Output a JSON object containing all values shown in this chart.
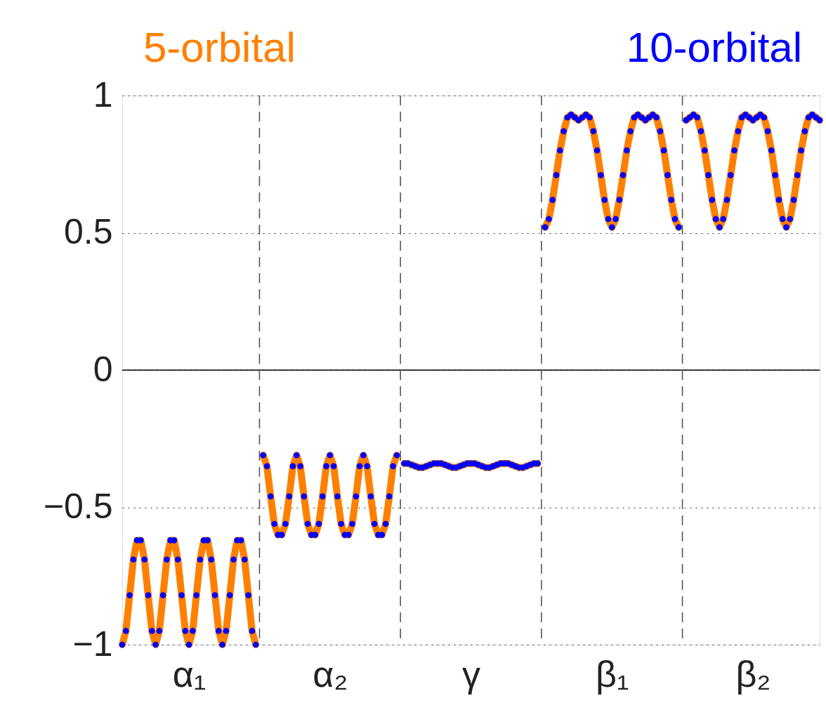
{
  "chart_data": {
    "type": "line",
    "categories": [
      null,
      null,
      null,
      null,
      null,
      null,
      null,
      null,
      null,
      null,
      null,
      null,
      null,
      null,
      null,
      null,
      null,
      null,
      "α₁",
      null,
      null,
      null,
      null,
      null,
      null,
      null,
      null,
      null,
      null,
      null,
      null,
      null,
      null,
      null,
      null,
      null,
      null,
      null,
      null,
      null,
      null,
      null,
      null,
      null,
      null,
      null,
      null,
      null,
      null,
      null,
      null,
      null,
      null,
      null,
      null,
      null,
      "α₂",
      null,
      null,
      null,
      null,
      null,
      null,
      null,
      null,
      null,
      null,
      null,
      null,
      null,
      null,
      null,
      null,
      null,
      null,
      null,
      null,
      null,
      null,
      null,
      null,
      null,
      null,
      null,
      null,
      null,
      null,
      null,
      null,
      null,
      null,
      null,
      null,
      null,
      "γ",
      null,
      null,
      null,
      null,
      null,
      null,
      null,
      null,
      null,
      null,
      null,
      null,
      null,
      null,
      null,
      null,
      null,
      null,
      null,
      null,
      null,
      null,
      null,
      null,
      null,
      null,
      null,
      null,
      null,
      null,
      null,
      null,
      null,
      null,
      null,
      null,
      null,
      "β₁",
      null,
      null,
      null,
      null,
      null,
      null,
      null,
      null,
      null,
      null,
      null,
      null,
      null,
      null,
      null,
      null,
      null,
      null,
      null,
      null,
      null,
      null,
      null,
      null,
      null,
      null,
      null,
      null,
      null,
      null,
      null,
      null,
      null,
      null,
      null,
      null,
      null,
      "β₂",
      null,
      null,
      null,
      null,
      null,
      null,
      null,
      null,
      null,
      null,
      null,
      null,
      null,
      null,
      null,
      null,
      null,
      null
    ],
    "series": [
      {
        "name": "5-orbital",
        "color": "#ff8000",
        "values": [
          -1,
          -0.95,
          -0.82,
          -0.69,
          -0.62,
          -0.62,
          -0.69,
          -0.82,
          -0.95,
          -1,
          -0.95,
          -0.82,
          -0.69,
          -0.62,
          -0.62,
          -0.69,
          -0.82,
          -0.95,
          -1,
          -0.95,
          -0.82,
          -0.69,
          -0.62,
          -0.62,
          -0.69,
          -0.82,
          -0.95,
          -1,
          -0.95,
          -0.82,
          -0.69,
          -0.62,
          -0.62,
          -0.69,
          -0.82,
          -0.95,
          -1,
          null,
          -0.31,
          -0.35,
          -0.46,
          -0.56,
          -0.6,
          -0.6,
          -0.56,
          -0.46,
          -0.35,
          -0.31,
          -0.35,
          -0.46,
          -0.56,
          -0.6,
          -0.6,
          -0.56,
          -0.46,
          -0.35,
          -0.31,
          -0.35,
          -0.46,
          -0.56,
          -0.6,
          -0.6,
          -0.56,
          -0.46,
          -0.35,
          -0.31,
          -0.35,
          -0.46,
          -0.56,
          -0.6,
          -0.6,
          -0.56,
          -0.46,
          -0.35,
          -0.31,
          null,
          -0.34,
          -0.34,
          -0.345,
          -0.35,
          -0.355,
          -0.355,
          -0.35,
          -0.345,
          -0.34,
          -0.34,
          -0.34,
          -0.345,
          -0.35,
          -0.355,
          -0.355,
          -0.35,
          -0.345,
          -0.34,
          -0.34,
          -0.34,
          -0.345,
          -0.35,
          -0.355,
          -0.355,
          -0.35,
          -0.345,
          -0.34,
          -0.34,
          -0.34,
          -0.345,
          -0.35,
          -0.355,
          -0.355,
          -0.35,
          -0.345,
          -0.34,
          -0.34,
          null,
          0.52,
          0.55,
          0.62,
          0.71,
          0.8,
          0.87,
          0.92,
          0.93,
          0.92,
          0.91,
          0.92,
          0.93,
          0.92,
          0.87,
          0.8,
          0.71,
          0.62,
          0.55,
          0.52,
          0.55,
          0.62,
          0.71,
          0.8,
          0.87,
          0.92,
          0.93,
          0.92,
          0.91,
          0.92,
          0.93,
          0.92,
          0.87,
          0.8,
          0.71,
          0.62,
          0.55,
          0.52,
          null,
          0.91,
          0.92,
          0.93,
          0.92,
          0.87,
          0.8,
          0.71,
          0.62,
          0.55,
          0.52,
          0.55,
          0.62,
          0.71,
          0.8,
          0.87,
          0.92,
          0.93,
          0.92,
          0.91,
          0.92,
          0.93,
          0.92,
          0.87,
          0.8,
          0.71,
          0.62,
          0.55,
          0.52,
          0.55,
          0.62,
          0.71,
          0.8,
          0.87,
          0.92,
          0.93,
          0.92,
          0.91
        ]
      },
      {
        "name": "10-orbital",
        "type": "scatter",
        "color": "#0000ff",
        "marker": "circle",
        "values": [
          -1,
          -0.95,
          -0.82,
          -0.69,
          -0.62,
          -0.62,
          -0.69,
          -0.82,
          -0.95,
          -1,
          -0.95,
          -0.82,
          -0.69,
          -0.62,
          -0.62,
          -0.69,
          -0.82,
          -0.95,
          -1,
          -0.95,
          -0.82,
          -0.69,
          -0.62,
          -0.62,
          -0.69,
          -0.82,
          -0.95,
          -1,
          -0.95,
          -0.82,
          -0.69,
          -0.62,
          -0.62,
          -0.69,
          -0.82,
          -0.95,
          -1,
          null,
          -0.31,
          -0.35,
          -0.46,
          -0.56,
          -0.6,
          -0.6,
          -0.56,
          -0.46,
          -0.35,
          -0.31,
          -0.35,
          -0.46,
          -0.56,
          -0.6,
          -0.6,
          -0.56,
          -0.46,
          -0.35,
          -0.31,
          -0.35,
          -0.46,
          -0.56,
          -0.6,
          -0.6,
          -0.56,
          -0.46,
          -0.35,
          -0.31,
          -0.35,
          -0.46,
          -0.56,
          -0.6,
          -0.6,
          -0.56,
          -0.46,
          -0.35,
          -0.31,
          null,
          -0.34,
          -0.34,
          -0.345,
          -0.35,
          -0.355,
          -0.355,
          -0.35,
          -0.345,
          -0.34,
          -0.34,
          -0.34,
          -0.345,
          -0.35,
          -0.355,
          -0.355,
          -0.35,
          -0.345,
          -0.34,
          -0.34,
          -0.34,
          -0.345,
          -0.35,
          -0.355,
          -0.355,
          -0.35,
          -0.345,
          -0.34,
          -0.34,
          -0.34,
          -0.345,
          -0.35,
          -0.355,
          -0.355,
          -0.35,
          -0.345,
          -0.34,
          -0.34,
          null,
          0.52,
          0.55,
          0.62,
          0.71,
          0.8,
          0.87,
          0.92,
          0.93,
          0.92,
          0.91,
          0.92,
          0.93,
          0.92,
          0.87,
          0.8,
          0.71,
          0.62,
          0.55,
          0.52,
          0.55,
          0.62,
          0.71,
          0.8,
          0.87,
          0.92,
          0.93,
          0.92,
          0.91,
          0.92,
          0.93,
          0.92,
          0.87,
          0.8,
          0.71,
          0.62,
          0.55,
          0.52,
          null,
          0.91,
          0.92,
          0.93,
          0.92,
          0.87,
          0.8,
          0.71,
          0.62,
          0.55,
          0.52,
          0.55,
          0.62,
          0.71,
          0.8,
          0.87,
          0.92,
          0.93,
          0.92,
          0.91,
          0.92,
          0.93,
          0.92,
          0.87,
          0.8,
          0.71,
          0.62,
          0.55,
          0.52,
          0.55,
          0.62,
          0.71,
          0.8,
          0.87,
          0.92,
          0.93,
          0.92,
          0.91
        ]
      }
    ],
    "ylim": [
      -1,
      1
    ],
    "yticks": [
      {
        "value": -1,
        "label": "−1"
      },
      {
        "value": -0.5,
        "label": "−0.5"
      },
      0,
      0.5,
      1
    ],
    "ref_lines": [
      {
        "axis": "y",
        "value": 0,
        "line_style": "solid",
        "color": "#000000"
      }
    ],
    "grid": "y",
    "legend": "top"
  }
}
